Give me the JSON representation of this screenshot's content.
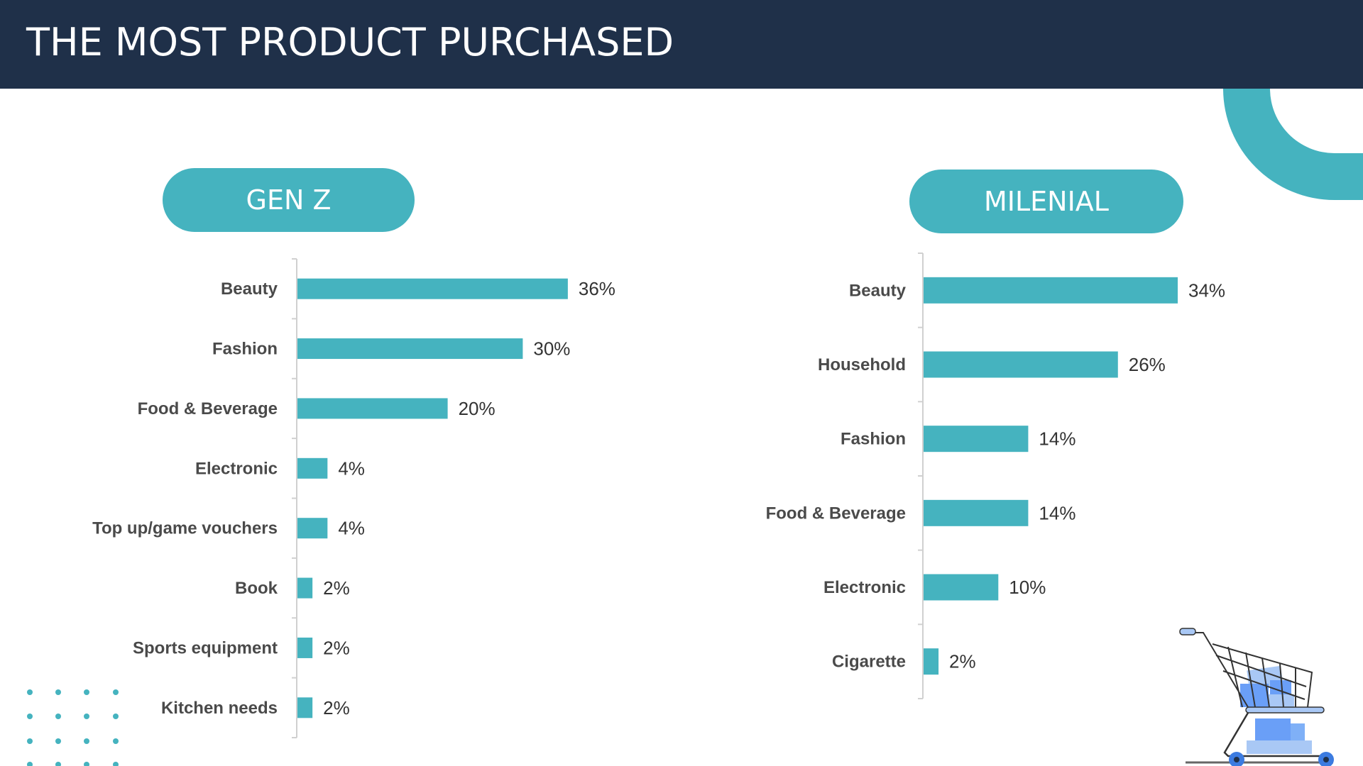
{
  "header": {
    "title": "THE MOST PRODUCT PURCHASED"
  },
  "colors": {
    "header_bg": "#1f3049",
    "accent": "#45b3bf",
    "text": "#4a4a4a"
  },
  "decor": {
    "icons": [
      "arc-decoration",
      "dot-grid",
      "shopping-cart-icon"
    ]
  },
  "chart_data": [
    {
      "type": "bar",
      "orientation": "horizontal",
      "title": "GEN Z",
      "categories": [
        "Beauty",
        "Fashion",
        "Food & Beverage",
        "Electronic",
        "Top up/game vouchers",
        "Book",
        "Sports equipment",
        "Kitchen needs"
      ],
      "values": [
        36,
        30,
        20,
        4,
        4,
        2,
        2,
        2
      ],
      "data_labels": [
        "36%",
        "30%",
        "20%",
        "4%",
        "4%",
        "2%",
        "2%",
        "2%"
      ],
      "unit": "%",
      "grid": false
    },
    {
      "type": "bar",
      "orientation": "horizontal",
      "title": "MILENIAL",
      "categories": [
        "Beauty",
        "Household",
        "Fashion",
        "Food & Beverage",
        "Electronic",
        "Cigarette"
      ],
      "values": [
        34,
        26,
        14,
        14,
        10,
        2
      ],
      "data_labels": [
        "34%",
        "26%",
        "14%",
        "14%",
        "10%",
        "2%"
      ],
      "unit": "%",
      "grid": false
    }
  ]
}
